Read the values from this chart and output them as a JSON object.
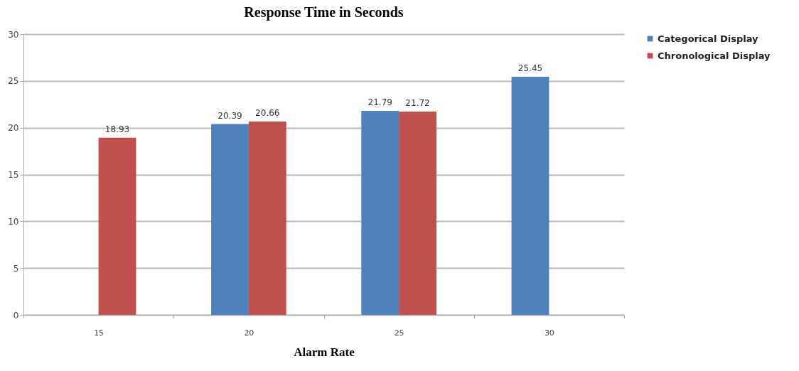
{
  "chart_data": {
    "type": "bar",
    "title": "Response Time in Seconds",
    "xlabel": "Alarm Rate",
    "categories": [
      "15",
      "20",
      "25",
      "30"
    ],
    "series": [
      {
        "name": "Categorical Display",
        "color": "#4f81bd",
        "values": [
          null,
          20.39,
          21.79,
          25.45
        ]
      },
      {
        "name": "Chronological Display",
        "color": "#c0504d",
        "values": [
          18.93,
          20.66,
          21.72,
          null
        ]
      }
    ],
    "ylim": [
      0,
      30
    ],
    "yticks": [
      0,
      5,
      10,
      15,
      20,
      25,
      30
    ],
    "grid": "y",
    "legend": "right",
    "data_labels": true
  }
}
